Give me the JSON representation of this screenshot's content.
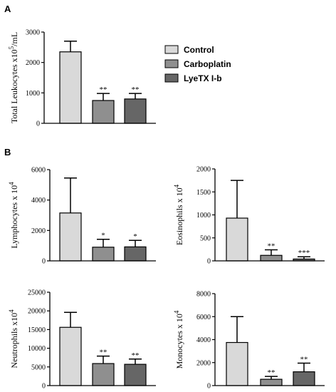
{
  "figure": {
    "panel_a_label": "A",
    "panel_b_label": "B",
    "legend": [
      {
        "label": "Control",
        "color": "#d9d9d9"
      },
      {
        "label": "Carboplatin",
        "color": "#8f8f8f"
      },
      {
        "label": "LyeTX I-b",
        "color": "#666666"
      }
    ]
  },
  "chart_data": [
    {
      "id": "total-leukocytes",
      "type": "bar",
      "title": "",
      "ylabel": "Total Leukocytes x10",
      "ylabel_sup": "5",
      "ylabel_suffix": "/mL",
      "categories": [
        "Control",
        "Carboplatin",
        "LyeTX I-b"
      ],
      "values": [
        2350,
        750,
        800
      ],
      "errors": [
        350,
        230,
        180
      ],
      "significance": [
        "",
        "**",
        "**"
      ],
      "ylim": [
        0,
        3000
      ],
      "yticks": [
        0,
        1000,
        2000,
        3000
      ],
      "grid": false
    },
    {
      "id": "lymphocytes",
      "type": "bar",
      "title": "",
      "ylabel": "Lymphocytes x 10",
      "ylabel_sup": "4",
      "ylabel_suffix": "",
      "categories": [
        "Control",
        "Carboplatin",
        "LyeTX I-b"
      ],
      "values": [
        3150,
        900,
        920
      ],
      "errors": [
        2300,
        520,
        430
      ],
      "significance": [
        "",
        "*",
        "*"
      ],
      "ylim": [
        0,
        6000
      ],
      "yticks": [
        0,
        2000,
        4000,
        6000
      ],
      "grid": false
    },
    {
      "id": "eosinophils",
      "type": "bar",
      "title": "",
      "ylabel": "Eosinophils x 10",
      "ylabel_sup": "4",
      "ylabel_suffix": "",
      "categories": [
        "Control",
        "Carboplatin",
        "LyeTX I-b"
      ],
      "values": [
        930,
        120,
        40
      ],
      "errors": [
        820,
        120,
        50
      ],
      "significance": [
        "",
        "**",
        "***"
      ],
      "ylim": [
        0,
        2000
      ],
      "yticks": [
        0,
        500,
        1000,
        1500,
        2000
      ],
      "grid": false
    },
    {
      "id": "neutrophils",
      "type": "bar",
      "title": "",
      "ylabel": "Neutrophils x10",
      "ylabel_sup": "4",
      "ylabel_suffix": "",
      "categories": [
        "Control",
        "Carboplatin",
        "LyeTX I-b"
      ],
      "values": [
        15600,
        5900,
        5700
      ],
      "errors": [
        4000,
        2000,
        1400
      ],
      "significance": [
        "",
        "**",
        "**"
      ],
      "ylim": [
        0,
        25000
      ],
      "yticks": [
        0,
        5000,
        10000,
        15000,
        20000,
        25000
      ],
      "grid": false
    },
    {
      "id": "monocytes",
      "type": "bar",
      "title": "",
      "ylabel": "Monocytes x 10",
      "ylabel_sup": "4",
      "ylabel_suffix": "",
      "categories": [
        "Control",
        "Carboplatin",
        "LyeTX I-b"
      ],
      "values": [
        3750,
        550,
        1200
      ],
      "errors": [
        2250,
        250,
        750
      ],
      "significance": [
        "",
        "**",
        "**"
      ],
      "ylim": [
        0,
        8000
      ],
      "yticks": [
        0,
        2000,
        4000,
        6000,
        8000
      ],
      "grid": false
    }
  ]
}
